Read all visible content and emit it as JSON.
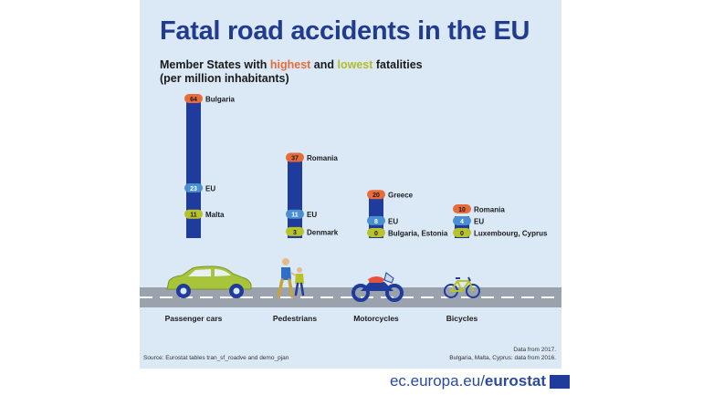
{
  "title": "Fatal road accidents in the EU",
  "subtitle": {
    "part1": "Member States with ",
    "highest": "highest",
    "part2": " and ",
    "lowest": "lowest",
    "part3": " fatalities",
    "line2": "(per million inhabitants)"
  },
  "colors": {
    "bar": "#1f3b9b",
    "highest": "#e86c3a",
    "eu": "#4a8fd0",
    "lowest": "#b8c22a",
    "road": "#9aa3ad",
    "car": "#a8c43a"
  },
  "icons": [
    "car-icon",
    "pedestrians-icon",
    "motorcycle-icon",
    "bicycle-icon",
    "eu-flag-icon"
  ],
  "chart_data": {
    "type": "bar",
    "categories": [
      "Passenger cars",
      "Pedestrians",
      "Motorcycles",
      "Bicycles"
    ],
    "groups": [
      {
        "category": "Passenger cars",
        "points": [
          {
            "kind": "highest",
            "value": 64,
            "label": "Bulgaria"
          },
          {
            "kind": "eu",
            "value": 23,
            "label": "EU"
          },
          {
            "kind": "lowest",
            "value": 11,
            "label": "Malta"
          }
        ]
      },
      {
        "category": "Pedestrians",
        "points": [
          {
            "kind": "highest",
            "value": 37,
            "label": "Romania"
          },
          {
            "kind": "eu",
            "value": 11,
            "label": "EU"
          },
          {
            "kind": "lowest",
            "value": 3,
            "label": "Denmark"
          }
        ]
      },
      {
        "category": "Motorcycles",
        "points": [
          {
            "kind": "highest",
            "value": 20,
            "label": "Greece"
          },
          {
            "kind": "eu",
            "value": 8,
            "label": "EU"
          },
          {
            "kind": "lowest",
            "value": 0,
            "label": "Bulgaria, Estonia"
          }
        ]
      },
      {
        "category": "Bicycles",
        "points": [
          {
            "kind": "highest",
            "value": 10,
            "label": "Romania"
          },
          {
            "kind": "eu",
            "value": 4,
            "label": "EU"
          },
          {
            "kind": "lowest",
            "value": 0,
            "label": "Luxembourg, Cyprus"
          }
        ]
      }
    ],
    "ylim": [
      0,
      64
    ]
  },
  "source": "Source: Eurostat tables tran_sf_roadve and demo_pjan",
  "note_line1": "Data from 2017.",
  "note_line2": "Bulgaria, Malta, Cyprus: data from 2016.",
  "footer": {
    "domain": "ec.europa.eu/",
    "brand": "eurostat"
  }
}
